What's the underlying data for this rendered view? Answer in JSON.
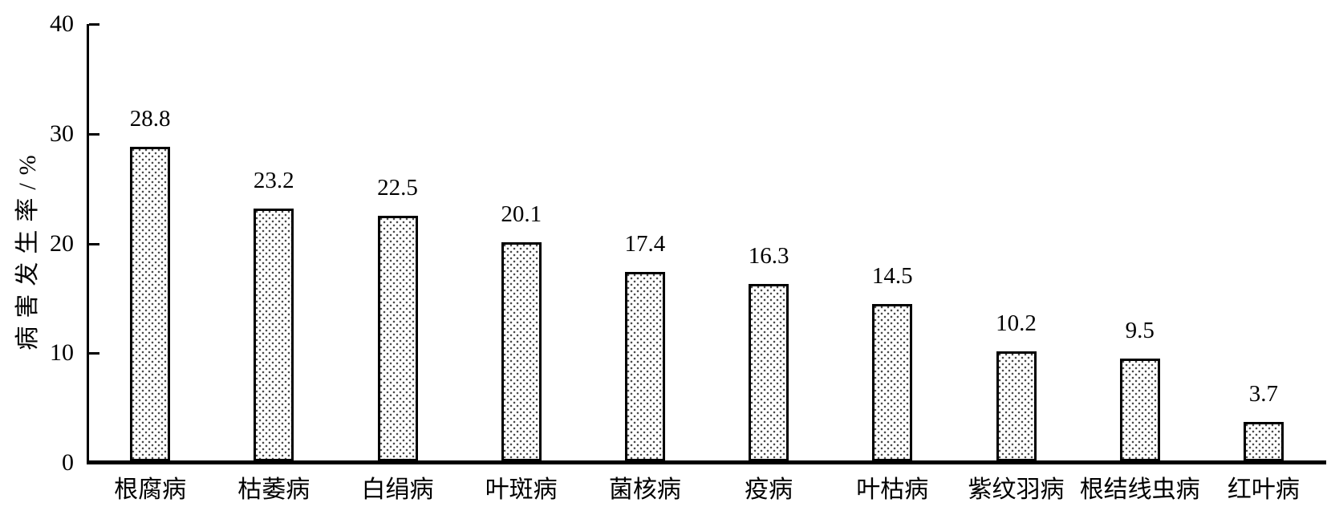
{
  "chart_data": {
    "type": "bar",
    "title": "",
    "xlabel": "",
    "ylabel": "病害发生率/%",
    "ylim": [
      0,
      40
    ],
    "yticks": [
      0,
      10,
      20,
      30,
      40
    ],
    "grid": false,
    "legend_position": "none",
    "categories": [
      "根腐病",
      "枯萎病",
      "白绢病",
      "叶斑病",
      "菌核病",
      "疫病",
      "叶枯病",
      "紫纹羽病",
      "根结线虫病",
      "红叶病"
    ],
    "values": [
      28.8,
      23.2,
      22.5,
      20.1,
      17.4,
      16.3,
      14.5,
      10.2,
      9.5,
      3.7
    ],
    "value_labels": [
      "28.8",
      "23.2",
      "22.5",
      "20.1",
      "17.4",
      "16.3",
      "14.5",
      "10.2",
      "9.5",
      "3.7"
    ],
    "bar_style": {
      "fill": "white with fine dot stipple pattern",
      "dot_color": "#4a4a4a",
      "outline_color": "#000000",
      "text_color": "#000000",
      "axis_color": "#000000",
      "background_color": "#ffffff"
    }
  }
}
